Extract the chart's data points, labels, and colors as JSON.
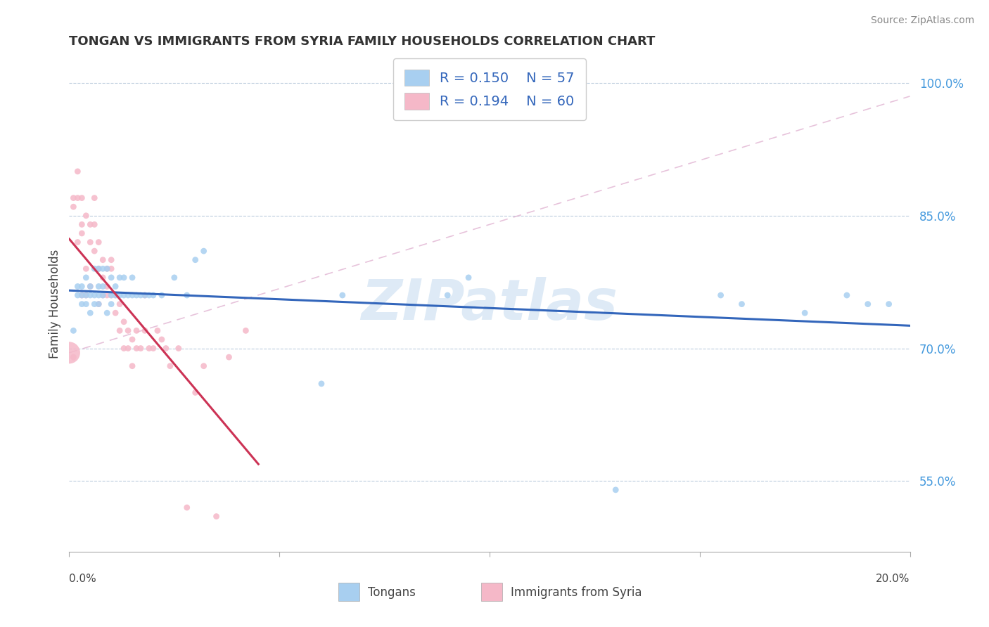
{
  "title": "TONGAN VS IMMIGRANTS FROM SYRIA FAMILY HOUSEHOLDS CORRELATION CHART",
  "source": "Source: ZipAtlas.com",
  "ylabel": "Family Households",
  "yticks": [
    "55.0%",
    "70.0%",
    "85.0%",
    "100.0%"
  ],
  "ytick_vals": [
    0.55,
    0.7,
    0.85,
    1.0
  ],
  "xlim": [
    0.0,
    0.2
  ],
  "ylim": [
    0.47,
    1.03
  ],
  "blue_R": 0.15,
  "blue_N": 57,
  "pink_R": 0.194,
  "pink_N": 60,
  "blue_color": "#A8CFF0",
  "pink_color": "#F5B8C8",
  "trend_blue": "#3366BB",
  "trend_pink": "#CC3355",
  "watermark": "ZIPatlas",
  "watermark_color": "#C8DDF0",
  "legend_fontsize": 14,
  "title_fontsize": 13,
  "blue_scatter_x": [
    0.001,
    0.002,
    0.002,
    0.003,
    0.003,
    0.003,
    0.004,
    0.004,
    0.004,
    0.005,
    0.005,
    0.005,
    0.006,
    0.006,
    0.006,
    0.007,
    0.007,
    0.007,
    0.007,
    0.008,
    0.008,
    0.008,
    0.009,
    0.009,
    0.01,
    0.01,
    0.01,
    0.011,
    0.011,
    0.012,
    0.012,
    0.013,
    0.013,
    0.014,
    0.015,
    0.015,
    0.016,
    0.017,
    0.018,
    0.019,
    0.02,
    0.022,
    0.025,
    0.028,
    0.03,
    0.032,
    0.06,
    0.065,
    0.09,
    0.095,
    0.13,
    0.155,
    0.16,
    0.175,
    0.185,
    0.19,
    0.195
  ],
  "blue_scatter_y": [
    0.72,
    0.77,
    0.76,
    0.75,
    0.76,
    0.77,
    0.75,
    0.76,
    0.78,
    0.74,
    0.76,
    0.77,
    0.75,
    0.76,
    0.79,
    0.75,
    0.77,
    0.76,
    0.79,
    0.76,
    0.77,
    0.79,
    0.74,
    0.79,
    0.75,
    0.76,
    0.78,
    0.76,
    0.77,
    0.76,
    0.78,
    0.76,
    0.78,
    0.76,
    0.76,
    0.78,
    0.76,
    0.76,
    0.76,
    0.76,
    0.76,
    0.76,
    0.78,
    0.76,
    0.8,
    0.81,
    0.66,
    0.76,
    0.76,
    0.78,
    0.54,
    0.76,
    0.75,
    0.74,
    0.76,
    0.75,
    0.75
  ],
  "pink_scatter_x": [
    0.0,
    0.001,
    0.001,
    0.001,
    0.002,
    0.002,
    0.002,
    0.003,
    0.003,
    0.003,
    0.003,
    0.004,
    0.004,
    0.004,
    0.005,
    0.005,
    0.005,
    0.006,
    0.006,
    0.006,
    0.007,
    0.007,
    0.007,
    0.008,
    0.008,
    0.008,
    0.009,
    0.009,
    0.009,
    0.01,
    0.01,
    0.01,
    0.011,
    0.011,
    0.012,
    0.012,
    0.013,
    0.013,
    0.014,
    0.014,
    0.015,
    0.015,
    0.016,
    0.016,
    0.017,
    0.018,
    0.018,
    0.019,
    0.02,
    0.021,
    0.022,
    0.023,
    0.024,
    0.026,
    0.028,
    0.03,
    0.032,
    0.035,
    0.038,
    0.042
  ],
  "pink_scatter_y": [
    0.695,
    0.87,
    0.86,
    0.69,
    0.9,
    0.87,
    0.82,
    0.84,
    0.87,
    0.76,
    0.83,
    0.85,
    0.79,
    0.76,
    0.84,
    0.82,
    0.77,
    0.81,
    0.84,
    0.87,
    0.79,
    0.82,
    0.75,
    0.78,
    0.8,
    0.76,
    0.76,
    0.79,
    0.77,
    0.76,
    0.79,
    0.8,
    0.74,
    0.76,
    0.72,
    0.75,
    0.7,
    0.73,
    0.7,
    0.72,
    0.68,
    0.71,
    0.7,
    0.72,
    0.7,
    0.72,
    0.76,
    0.7,
    0.7,
    0.72,
    0.71,
    0.7,
    0.68,
    0.7,
    0.52,
    0.65,
    0.68,
    0.51,
    0.69,
    0.72
  ],
  "pink_large_idx": 0,
  "pink_large_size": 500
}
